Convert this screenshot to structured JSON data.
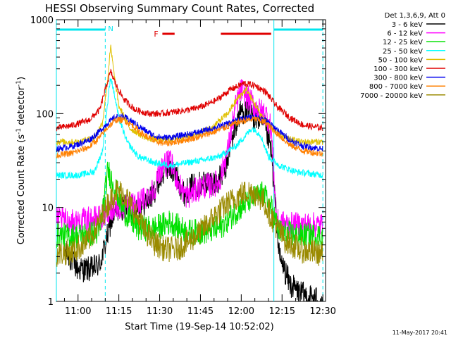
{
  "chart_data": {
    "type": "line",
    "title": "HESSI Observing Summary Count Rates, Corrected",
    "xlabel": "Start Time (19-Sep-14 10:52:02)",
    "ylabel_main": "Corrected Count Rate (s",
    "ylabel_sup1": "-1",
    "ylabel_mid": " detector",
    "ylabel_sup2": "-1",
    "ylabel_end": ")",
    "y_scale": "log",
    "ylim": [
      1,
      1000
    ],
    "xlim": [
      "10:52:02",
      "12:31:00"
    ],
    "x_ticks": [
      "11:00",
      "11:15",
      "11:30",
      "11:45",
      "12:00",
      "12:15",
      "12:30"
    ],
    "y_ticks": [
      "1",
      "10",
      "100",
      "1000"
    ],
    "legend_header": "Det 1,3,6,9, Att 0",
    "legend_position": "right",
    "date_stamp": "11-May-2017 20:41",
    "flags": {
      "night_label": "N",
      "flare_label": "F",
      "night_color": "#00e5ee",
      "flare_color": "#e00000",
      "night_intervals": [
        [
          "10:52:02",
          "11:10:00"
        ],
        [
          "12:12:00",
          "12:30:00"
        ]
      ],
      "flare_intervals": [
        [
          "11:31:00",
          "11:35:30"
        ],
        [
          "11:52:30",
          "12:11:00"
        ]
      ],
      "saa_boundaries": [
        "10:52:02",
        "11:10:00",
        "12:12:00",
        "12:30:00"
      ]
    },
    "series": [
      {
        "name": "3 - 6 keV",
        "color": "#000000",
        "points": [
          [
            "10:55",
            3.5
          ],
          [
            "11:00",
            2.2
          ],
          [
            "11:05",
            2.2
          ],
          [
            "11:08",
            2.5
          ],
          [
            "11:10",
            4
          ],
          [
            "11:12",
            7
          ],
          [
            "11:15",
            10
          ],
          [
            "11:18",
            10
          ],
          [
            "11:21",
            10
          ],
          [
            "11:24",
            11
          ],
          [
            "11:27",
            13
          ],
          [
            "11:30",
            20
          ],
          [
            "11:33",
            28
          ],
          [
            "11:36",
            22
          ],
          [
            "11:39",
            14
          ],
          [
            "11:42",
            17
          ],
          [
            "11:45",
            18
          ],
          [
            "11:48",
            19
          ],
          [
            "11:51",
            18
          ],
          [
            "11:54",
            25
          ],
          [
            "11:57",
            60
          ],
          [
            "12:00",
            110
          ],
          [
            "12:03",
            95
          ],
          [
            "12:06",
            90
          ],
          [
            "12:09",
            70
          ],
          [
            "12:11",
            40
          ],
          [
            "12:14",
            3
          ],
          [
            "12:18",
            1.5
          ],
          [
            "12:22",
            1.2
          ],
          [
            "12:26",
            1.1
          ],
          [
            "12:30",
            1.0
          ]
        ]
      },
      {
        "name": "6 - 12 keV",
        "color": "#ff00ff",
        "points": [
          [
            "10:52",
            7.5
          ],
          [
            "10:58",
            7
          ],
          [
            "11:05",
            7.5
          ],
          [
            "11:10",
            8
          ],
          [
            "11:12",
            10
          ],
          [
            "11:15",
            10
          ],
          [
            "11:18",
            10
          ],
          [
            "11:22",
            11
          ],
          [
            "11:25",
            13
          ],
          [
            "11:28",
            16
          ],
          [
            "11:31",
            28
          ],
          [
            "11:34",
            30
          ],
          [
            "11:37",
            18
          ],
          [
            "11:40",
            13
          ],
          [
            "11:43",
            15
          ],
          [
            "11:46",
            17
          ],
          [
            "11:49",
            17
          ],
          [
            "11:52",
            19
          ],
          [
            "11:55",
            40
          ],
          [
            "11:58",
            120
          ],
          [
            "12:00",
            180
          ],
          [
            "12:03",
            140
          ],
          [
            "12:06",
            110
          ],
          [
            "12:09",
            100
          ],
          [
            "12:11",
            70
          ],
          [
            "12:13",
            7
          ],
          [
            "12:18",
            6.5
          ],
          [
            "12:24",
            6.5
          ],
          [
            "12:30",
            6.5
          ]
        ]
      },
      {
        "name": "12 - 25 keV",
        "color": "#00e000",
        "points": [
          [
            "10:52",
            5
          ],
          [
            "11:00",
            5
          ],
          [
            "11:08",
            5.5
          ],
          [
            "11:11",
            25
          ],
          [
            "11:13",
            18
          ],
          [
            "11:17",
            9
          ],
          [
            "11:22",
            6
          ],
          [
            "11:28",
            6
          ],
          [
            "11:34",
            7
          ],
          [
            "11:40",
            5.5
          ],
          [
            "11:46",
            5.5
          ],
          [
            "11:52",
            6
          ],
          [
            "11:58",
            9
          ],
          [
            "12:03",
            12
          ],
          [
            "12:08",
            14
          ],
          [
            "12:11",
            10
          ],
          [
            "12:14",
            5.5
          ],
          [
            "12:22",
            5
          ],
          [
            "12:30",
            5
          ]
        ]
      },
      {
        "name": "25 - 50 keV",
        "color": "#00ffff",
        "points": [
          [
            "10:52",
            22
          ],
          [
            "11:00",
            22
          ],
          [
            "11:06",
            24
          ],
          [
            "11:09",
            40
          ],
          [
            "11:11",
            140
          ],
          [
            "11:12",
            250
          ],
          [
            "11:13",
            180
          ],
          [
            "11:15",
            90
          ],
          [
            "11:18",
            50
          ],
          [
            "11:22",
            35
          ],
          [
            "11:28",
            30
          ],
          [
            "11:34",
            28
          ],
          [
            "11:40",
            30
          ],
          [
            "11:46",
            32
          ],
          [
            "11:52",
            35
          ],
          [
            "11:58",
            45
          ],
          [
            "12:04",
            70
          ],
          [
            "12:07",
            60
          ],
          [
            "12:10",
            35
          ],
          [
            "12:14",
            28
          ],
          [
            "12:20",
            24
          ],
          [
            "12:30",
            22
          ]
        ]
      },
      {
        "name": "50 - 100 keV",
        "color": "#e0c000",
        "points": [
          [
            "10:52",
            50
          ],
          [
            "11:00",
            50
          ],
          [
            "11:06",
            55
          ],
          [
            "11:09",
            80
          ],
          [
            "11:11",
            250
          ],
          [
            "11:12",
            520
          ],
          [
            "11:13",
            300
          ],
          [
            "11:15",
            120
          ],
          [
            "11:19",
            70
          ],
          [
            "11:25",
            55
          ],
          [
            "11:31",
            52
          ],
          [
            "11:37",
            55
          ],
          [
            "11:43",
            60
          ],
          [
            "11:49",
            70
          ],
          [
            "11:55",
            100
          ],
          [
            "11:59",
            150
          ],
          [
            "12:02",
            180
          ],
          [
            "12:04",
            140
          ],
          [
            "12:07",
            100
          ],
          [
            "12:11",
            70
          ],
          [
            "12:16",
            55
          ],
          [
            "12:22",
            50
          ],
          [
            "12:30",
            50
          ]
        ]
      },
      {
        "name": "100 - 300 keV",
        "color": "#e00000",
        "points": [
          [
            "10:52",
            70
          ],
          [
            "10:58",
            75
          ],
          [
            "11:04",
            85
          ],
          [
            "11:08",
            110
          ],
          [
            "11:10",
            180
          ],
          [
            "11:12",
            280
          ],
          [
            "11:14",
            200
          ],
          [
            "11:17",
            140
          ],
          [
            "11:21",
            110
          ],
          [
            "11:26",
            100
          ],
          [
            "11:31",
            100
          ],
          [
            "11:36",
            105
          ],
          [
            "11:41",
            110
          ],
          [
            "11:46",
            120
          ],
          [
            "11:51",
            140
          ],
          [
            "11:56",
            180
          ],
          [
            "12:01",
            210
          ],
          [
            "12:05",
            200
          ],
          [
            "12:09",
            170
          ],
          [
            "12:13",
            120
          ],
          [
            "12:18",
            90
          ],
          [
            "12:23",
            75
          ],
          [
            "12:30",
            70
          ]
        ]
      },
      {
        "name": "300 - 800 keV",
        "color": "#0000ee",
        "points": [
          [
            "10:52",
            42
          ],
          [
            "10:58",
            45
          ],
          [
            "11:04",
            52
          ],
          [
            "11:08",
            65
          ],
          [
            "11:11",
            80
          ],
          [
            "11:14",
            92
          ],
          [
            "11:17",
            92
          ],
          [
            "11:20",
            82
          ],
          [
            "11:24",
            68
          ],
          [
            "11:28",
            58
          ],
          [
            "11:32",
            55
          ],
          [
            "11:36",
            57
          ],
          [
            "11:40",
            60
          ],
          [
            "11:45",
            64
          ],
          [
            "11:50",
            70
          ],
          [
            "11:55",
            78
          ],
          [
            "12:00",
            88
          ],
          [
            "12:05",
            92
          ],
          [
            "12:09",
            85
          ],
          [
            "12:13",
            68
          ],
          [
            "12:18",
            52
          ],
          [
            "12:23",
            45
          ],
          [
            "12:30",
            42
          ]
        ]
      },
      {
        "name": "800 - 7000 keV",
        "color": "#ff8000",
        "points": [
          [
            "10:52",
            36
          ],
          [
            "10:58",
            38
          ],
          [
            "11:04",
            44
          ],
          [
            "11:08",
            56
          ],
          [
            "11:11",
            72
          ],
          [
            "11:14",
            86
          ],
          [
            "11:17",
            85
          ],
          [
            "11:20",
            75
          ],
          [
            "11:24",
            60
          ],
          [
            "11:28",
            51
          ],
          [
            "11:32",
            48
          ],
          [
            "11:36",
            50
          ],
          [
            "11:40",
            53
          ],
          [
            "11:45",
            57
          ],
          [
            "11:50",
            64
          ],
          [
            "11:55",
            73
          ],
          [
            "12:00",
            83
          ],
          [
            "12:05",
            88
          ],
          [
            "12:09",
            80
          ],
          [
            "12:13",
            62
          ],
          [
            "12:18",
            46
          ],
          [
            "12:23",
            40
          ],
          [
            "12:30",
            37
          ]
        ]
      },
      {
        "name": "7000 - 20000 keV",
        "color": "#9a8a00",
        "points": [
          [
            "10:52",
            3.2
          ],
          [
            "10:58",
            3.4
          ],
          [
            "11:04",
            4.5
          ],
          [
            "11:08",
            7
          ],
          [
            "11:11",
            11
          ],
          [
            "11:14",
            15
          ],
          [
            "11:17",
            14
          ],
          [
            "11:20",
            10
          ],
          [
            "11:24",
            6
          ],
          [
            "11:28",
            4.2
          ],
          [
            "11:32",
            3.6
          ],
          [
            "11:36",
            3.6
          ],
          [
            "11:40",
            4.2
          ],
          [
            "11:45",
            5.5
          ],
          [
            "11:50",
            8
          ],
          [
            "11:55",
            11
          ],
          [
            "12:00",
            14
          ],
          [
            "12:04",
            15
          ],
          [
            "12:08",
            12
          ],
          [
            "12:12",
            7
          ],
          [
            "12:16",
            4.5
          ],
          [
            "12:22",
            3.5
          ],
          [
            "12:30",
            3.2
          ]
        ]
      }
    ]
  }
}
